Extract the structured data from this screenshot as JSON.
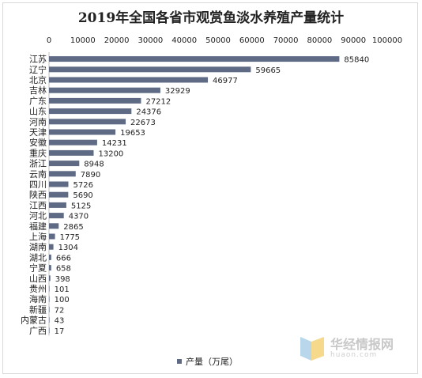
{
  "chart_data": {
    "type": "bar",
    "orientation": "horizontal",
    "title": "2019年全国各省市观赏鱼淡水养殖产量统计",
    "categories": [
      "江苏",
      "辽宁",
      "北京",
      "吉林",
      "广东",
      "山东",
      "河南",
      "天津",
      "安徽",
      "重庆",
      "浙江",
      "云南",
      "四川",
      "陕西",
      "江西",
      "河北",
      "福建",
      "上海",
      "湖南",
      "湖北",
      "宁夏",
      "山西",
      "贵州",
      "海南",
      "新疆",
      "内蒙古",
      "广西"
    ],
    "series": [
      {
        "name": "产量（万尾）",
        "values": [
          85840,
          59665,
          46977,
          32929,
          27212,
          24376,
          22673,
          19653,
          14231,
          13200,
          8948,
          7890,
          5726,
          5690,
          5125,
          4370,
          2865,
          1775,
          1304,
          666,
          658,
          398,
          101,
          100,
          72,
          43,
          17
        ]
      }
    ],
    "xlim": [
      0,
      100000
    ],
    "xticks": [
      0,
      10000,
      20000,
      30000,
      40000,
      50000,
      60000,
      70000,
      80000,
      90000,
      100000
    ],
    "tick_labels": [
      "0",
      "10000",
      "20000",
      "30000",
      "40000",
      "50000",
      "60000",
      "70000",
      "80000",
      "90000",
      "100000"
    ],
    "value_labels": [
      "85840",
      "59665",
      "46977",
      "32929",
      "27212",
      "24376",
      "22673",
      "19653",
      "14231",
      "13200",
      "8948",
      "7890",
      "5726",
      "5690",
      "5125",
      "4370",
      "2865",
      "1775",
      "1304",
      "666",
      "658",
      "398",
      "101",
      "100",
      "72",
      "43",
      "17"
    ],
    "axis_position": "top",
    "grid": false,
    "legend_position": "bottom",
    "bar_color": "#5f6b84"
  },
  "watermark": {
    "name": "华经情报网",
    "url": "huaon.com"
  }
}
